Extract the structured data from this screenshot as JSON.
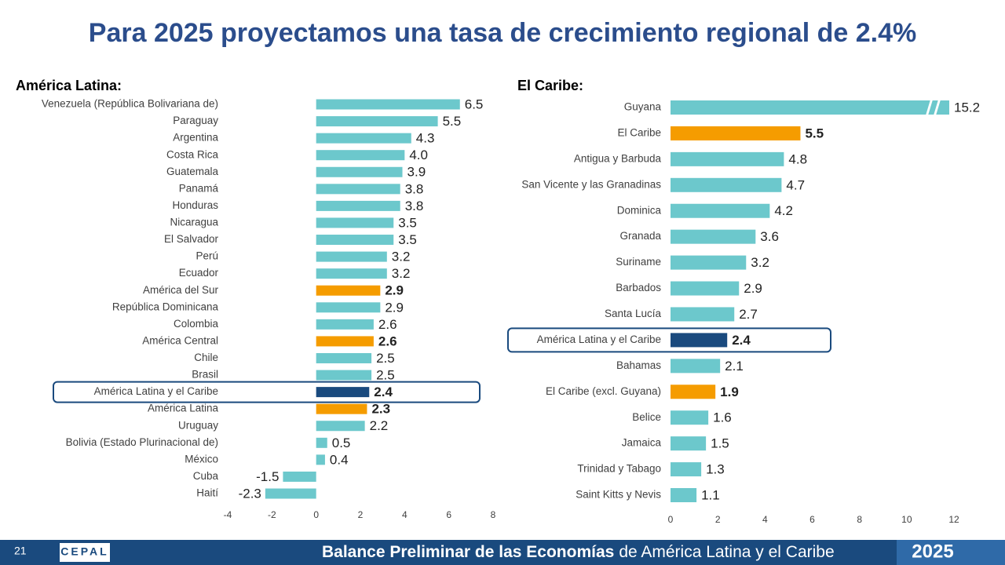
{
  "title": "Para 2025 proyectamos una tasa de crecimiento regional de 2.4%",
  "chart_data": [
    {
      "type": "bar",
      "orientation": "horizontal",
      "title": "América Latina:",
      "categories": [
        "Venezuela (República Bolivariana de)",
        "Paraguay",
        "Argentina",
        "Costa Rica",
        "Guatemala",
        "Panamá",
        "Honduras",
        "Nicaragua",
        "El Salvador",
        "Perú",
        "Ecuador",
        "América del Sur",
        "República Dominicana",
        "Colombia",
        "América Central",
        "Chile",
        "Brasil",
        "América Latina y el Caribe",
        "América Latina",
        "Uruguay",
        "Bolivia (Estado Plurinacional de)",
        "México",
        "Cuba",
        "Haití"
      ],
      "values": [
        6.5,
        5.5,
        4.3,
        4.0,
        3.9,
        3.8,
        3.8,
        3.5,
        3.5,
        3.2,
        3.2,
        2.9,
        2.9,
        2.6,
        2.6,
        2.5,
        2.5,
        2.4,
        2.3,
        2.2,
        0.5,
        0.4,
        -1.5,
        -2.3
      ],
      "value_labels": [
        "6.5",
        "5.5",
        "4.3",
        "4.0",
        "3.9",
        "3.8",
        "3.8",
        "3.5",
        "3.5",
        "3.2",
        "3.2",
        "2.9",
        "2.9",
        "2.6",
        "2.6",
        "2.5",
        "2.5",
        "2.4",
        "2.3",
        "2.2",
        "0.5",
        "0.4",
        "-1.5",
        "-2.3"
      ],
      "colors": [
        "#6cc8cc",
        "#6cc8cc",
        "#6cc8cc",
        "#6cc8cc",
        "#6cc8cc",
        "#6cc8cc",
        "#6cc8cc",
        "#6cc8cc",
        "#6cc8cc",
        "#6cc8cc",
        "#6cc8cc",
        "#f59c00",
        "#6cc8cc",
        "#6cc8cc",
        "#f59c00",
        "#6cc8cc",
        "#6cc8cc",
        "#1a4a7e",
        "#f59c00",
        "#6cc8cc",
        "#6cc8cc",
        "#6cc8cc",
        "#6cc8cc",
        "#6cc8cc"
      ],
      "highlight_color": "#1a4a7e",
      "xlim": [
        -4,
        8
      ],
      "xticks": [
        -4,
        -2,
        0,
        2,
        4,
        6,
        8
      ]
    },
    {
      "type": "bar",
      "orientation": "horizontal",
      "title": "El Caribe:",
      "categories": [
        "Guyana",
        "El Caribe",
        "Antigua y Barbuda",
        "San Vicente y las Granadinas",
        "Dominica",
        "Granada",
        "Suriname",
        "Barbados",
        "Santa Lucía",
        "América Latina y el Caribe",
        "Bahamas",
        "El Caribe (excl. Guyana)",
        "Belice",
        "Jamaica",
        "Trinidad y Tabago",
        "Saint Kitts y Nevis"
      ],
      "values": [
        15.2,
        5.5,
        4.8,
        4.7,
        4.2,
        3.6,
        3.2,
        2.9,
        2.7,
        2.4,
        2.1,
        1.9,
        1.6,
        1.5,
        1.3,
        1.1
      ],
      "value_labels": [
        "15.2",
        "5.5",
        "4.8",
        "4.7",
        "4.2",
        "3.6",
        "3.2",
        "2.9",
        "2.7",
        "2.4",
        "2.1",
        "1.9",
        "1.6",
        "1.5",
        "1.3",
        "1.1"
      ],
      "colors": [
        "#6cc8cc",
        "#f59c00",
        "#6cc8cc",
        "#6cc8cc",
        "#6cc8cc",
        "#6cc8cc",
        "#6cc8cc",
        "#6cc8cc",
        "#6cc8cc",
        "#1a4a7e",
        "#6cc8cc",
        "#f59c00",
        "#6cc8cc",
        "#6cc8cc",
        "#6cc8cc",
        "#6cc8cc"
      ],
      "highlight_color": "#1a4a7e",
      "xlim": [
        0,
        12
      ],
      "xticks": [
        0,
        2,
        4,
        6,
        8,
        10,
        12
      ],
      "axis_break": true
    }
  ],
  "footer": {
    "page": "21",
    "logo": "CEPAL",
    "title_bold": "Balance Preliminar de las Economías",
    "title_rest": "de América Latina y el Caribe",
    "year": "2025"
  }
}
